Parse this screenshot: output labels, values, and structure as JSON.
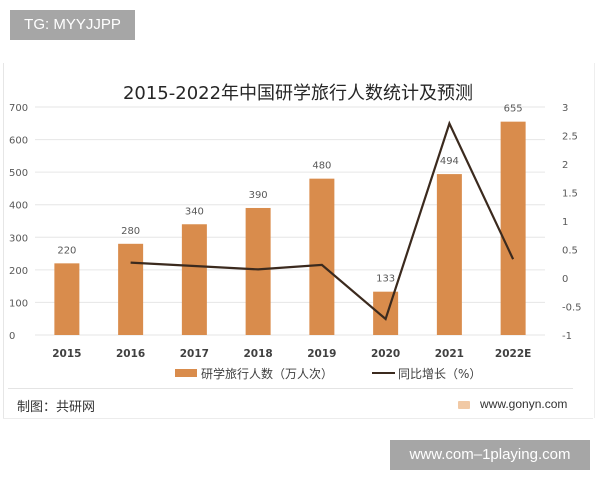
{
  "watermarks": {
    "top": "TG: MYYJJPP",
    "bottom": "www.com–1playing.com"
  },
  "footer": {
    "source": "制图：共研网",
    "site": "www.gonyn.com"
  },
  "colors": {
    "bar": "#d98c4c",
    "line": "#3b2a1e",
    "grid": "#e6e6e6",
    "text": "#595959"
  },
  "chart_data": {
    "type": "bar",
    "title": "2015-2022年中国研学旅行人数统计及预测",
    "categories": [
      "2015",
      "2016",
      "2017",
      "2018",
      "2019",
      "2020",
      "2021",
      "2022E"
    ],
    "series": [
      {
        "name": "研学旅行人数（万人次）",
        "type": "bar",
        "axis": "left",
        "values": [
          220,
          280,
          340,
          390,
          480,
          133,
          494,
          655
        ]
      },
      {
        "name": "同比增长（%）",
        "type": "line",
        "axis": "right",
        "values": [
          null,
          0.27,
          0.21,
          0.15,
          0.23,
          -0.72,
          2.71,
          0.33
        ]
      }
    ],
    "data_labels": [
      "220",
      "280",
      "340",
      "390",
      "480",
      "133",
      "494",
      "655"
    ],
    "left_axis": {
      "ylim": [
        0,
        700
      ],
      "ticks": [
        "0",
        "100",
        "200",
        "300",
        "400",
        "500",
        "600",
        "700"
      ]
    },
    "right_axis": {
      "ylim": [
        -1,
        3
      ],
      "ticks": [
        "-1",
        "-0.5",
        "0",
        "0.5",
        "1",
        "1.5",
        "2",
        "2.5",
        "3"
      ]
    },
    "grid": true,
    "legend_position": "bottom",
    "xlabel": "",
    "ylabel": ""
  }
}
